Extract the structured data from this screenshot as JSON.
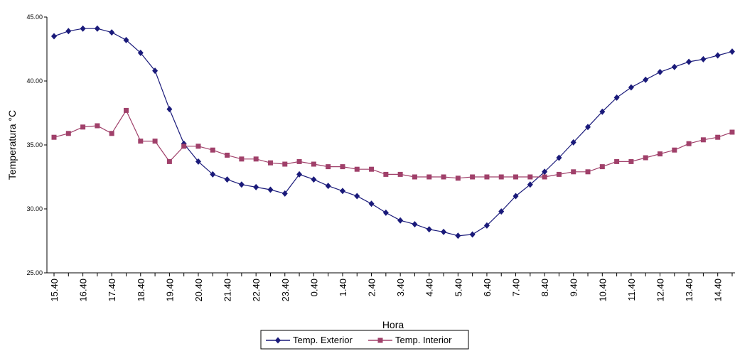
{
  "chart_data": {
    "type": "line",
    "xlabel": "Hora",
    "ylabel": "Temperatura °C",
    "ylim": [
      25,
      45
    ],
    "yticks": [
      "25.00",
      "30.00",
      "35.00",
      "40.00",
      "45.00"
    ],
    "ytick_values": [
      25,
      30,
      35,
      40,
      45
    ],
    "grid": false,
    "legend_position": "bottom",
    "x_labels": [
      "15.40",
      "16.40",
      "17.40",
      "18.40",
      "19.40",
      "20.40",
      "21.40",
      "22.40",
      "23.40",
      "0.40",
      "1.40",
      "2.40",
      "3.40",
      "4.40",
      "5.40",
      "6.40",
      "7.40",
      "8.40",
      "9.40",
      "10.40",
      "11.40",
      "12.40",
      "13.40",
      "14.40"
    ],
    "series": [
      {
        "name": "Temp. Exterior",
        "color": "#1a1a7a",
        "marker": "diamond",
        "values": [
          43.5,
          43.9,
          44.1,
          44.1,
          43.8,
          43.2,
          42.2,
          40.8,
          37.8,
          35.1,
          33.7,
          32.7,
          32.3,
          31.9,
          31.7,
          31.5,
          31.2,
          32.7,
          32.3,
          31.8,
          31.4,
          31.0,
          30.4,
          29.7,
          29.1,
          28.8,
          28.4,
          28.2,
          27.9,
          28.0,
          28.7,
          29.8,
          31.0,
          31.9,
          32.9,
          34.0,
          35.2,
          36.4,
          37.6,
          38.7,
          39.5,
          40.1,
          40.7,
          41.1,
          41.5,
          41.7,
          42.0,
          42.3
        ]
      },
      {
        "name": "Temp. Interior",
        "color": "#a0406a",
        "marker": "square",
        "values": [
          35.6,
          35.9,
          36.4,
          36.5,
          35.9,
          37.7,
          35.3,
          35.3,
          33.7,
          34.9,
          34.9,
          34.6,
          34.2,
          33.9,
          33.9,
          33.6,
          33.5,
          33.7,
          33.5,
          33.3,
          33.3,
          33.1,
          33.1,
          32.7,
          32.7,
          32.5,
          32.5,
          32.5,
          32.4,
          32.5,
          32.5,
          32.5,
          32.5,
          32.5,
          32.5,
          32.7,
          32.9,
          32.9,
          33.3,
          33.7,
          33.7,
          34.0,
          34.3,
          34.6,
          35.1,
          35.4,
          35.6,
          36.0
        ]
      }
    ]
  }
}
